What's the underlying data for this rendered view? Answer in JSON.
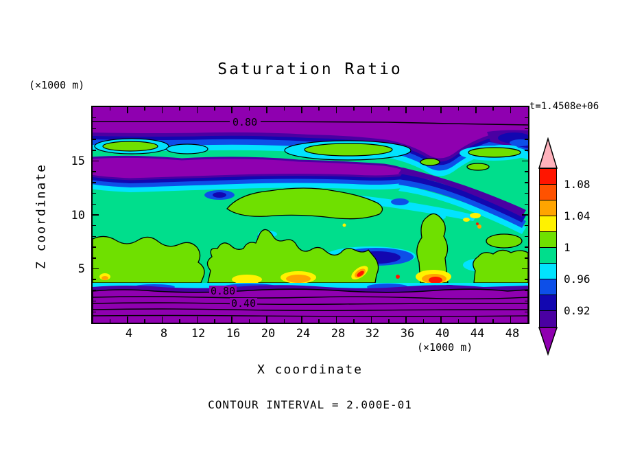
{
  "title": "Saturation Ratio",
  "timestamp": "t=1.4508e+06",
  "caption": "CONTOUR INTERVAL = 2.000E-01",
  "axes": {
    "x": {
      "label": "X coordinate",
      "unit": "(×1000 m)",
      "ticks": [
        "4",
        "8",
        "12",
        "16",
        "20",
        "24",
        "28",
        "32",
        "36",
        "40",
        "44",
        "48"
      ]
    },
    "y": {
      "label": "Z coordinate",
      "unit": "(×1000 m)",
      "ticks": [
        "5",
        "10",
        "15"
      ]
    }
  },
  "chart_data": {
    "type": "heatmap",
    "title": "Saturation Ratio",
    "xlabel": "X coordinate (×1000 m)",
    "ylabel": "Z coordinate (×1000 m)",
    "x_range": [
      0,
      50
    ],
    "z_range": [
      0,
      20
    ],
    "time_label": "t=1.4508e+06",
    "contour_interval": 0.2,
    "x_axis": {
      "min": 0,
      "max": 50,
      "minor_step": 2,
      "major_step": 4
    },
    "y_axis": {
      "min": 0,
      "max": 20,
      "minor_step": 1,
      "major_step": 5
    },
    "contour_labels": {
      "top": "0.80",
      "bottom_upper": "0.80",
      "bottom_lower": "0.40"
    },
    "colorbar": {
      "tick_labels": [
        "1.08",
        "1.04",
        "1",
        "0.96",
        "0.92"
      ],
      "segment_colors_top_to_bottom": [
        "#FF1500",
        "#FF5200",
        "#FFA400",
        "#FFF200",
        "#6FE000",
        "#00DE8C",
        "#02E3FE",
        "#0D4FE8",
        "#1207B0",
        "#4A00A2"
      ],
      "segment_ranges_top_to_bottom": [
        "1.08–1.10",
        "1.06–1.08",
        "1.04–1.06",
        "1.02–1.04",
        "1.00–1.02",
        "0.98–1.00",
        "0.96–0.98",
        "0.94–0.96",
        "0.92–0.94",
        "0.90–0.92"
      ],
      "over_color": "#FFB2BC",
      "under_color": "#8F00B0"
    },
    "field_colors": {
      "purple_band": "#8F00B0",
      "indigo": "#4A00A2",
      "navy": "#1207B0",
      "blue": "#0D4FE8",
      "cyan": "#02E3FE",
      "spring_green": "#00DE8C",
      "chartreuse": "#6FE000",
      "yellow": "#FFF200",
      "orange": "#FFA400",
      "red": "#FF1500"
    }
  }
}
